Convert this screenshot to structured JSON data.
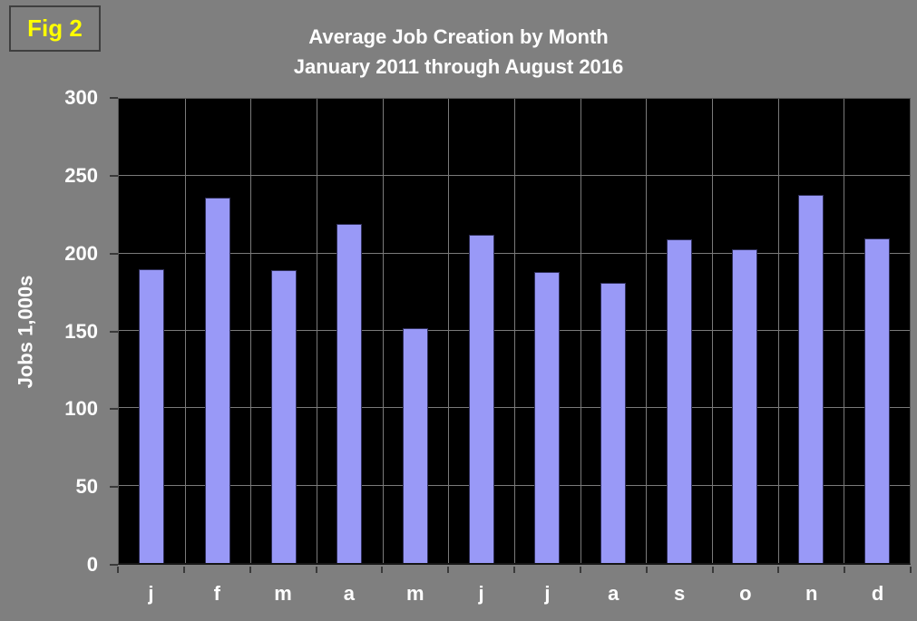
{
  "figure_label": "Fig 2",
  "title_line1": "Average Job Creation by Month",
  "title_line2": "January 2011 through August 2016",
  "chart_data": {
    "type": "bar",
    "title": "Average Job Creation by Month — January 2011 through August 2016",
    "categories": [
      "j",
      "f",
      "m",
      "a",
      "m",
      "j",
      "j",
      "a",
      "s",
      "o",
      "n",
      "d"
    ],
    "values": [
      190,
      236,
      189,
      219,
      152,
      212,
      188,
      181,
      209,
      203,
      238,
      210
    ],
    "xlabel": "",
    "ylabel": "Jobs 1,000s",
    "ylim": [
      0,
      300
    ],
    "yticks": [
      0,
      50,
      100,
      150,
      200,
      250,
      300
    ],
    "grid": true,
    "legend": false
  },
  "colors": {
    "background": "#7f7f7f",
    "plot_background": "#000000",
    "bar_fill": "#9999f7",
    "bar_border": "#30305a",
    "gridline": "#7a7a7a",
    "plot_border": "#565656",
    "tick": "#3a3a3a",
    "title_text": "#ffffff",
    "axis_text": "#ffffff",
    "figure_label_text": "#ffff00",
    "figure_label_border": "#3f3f3f"
  }
}
